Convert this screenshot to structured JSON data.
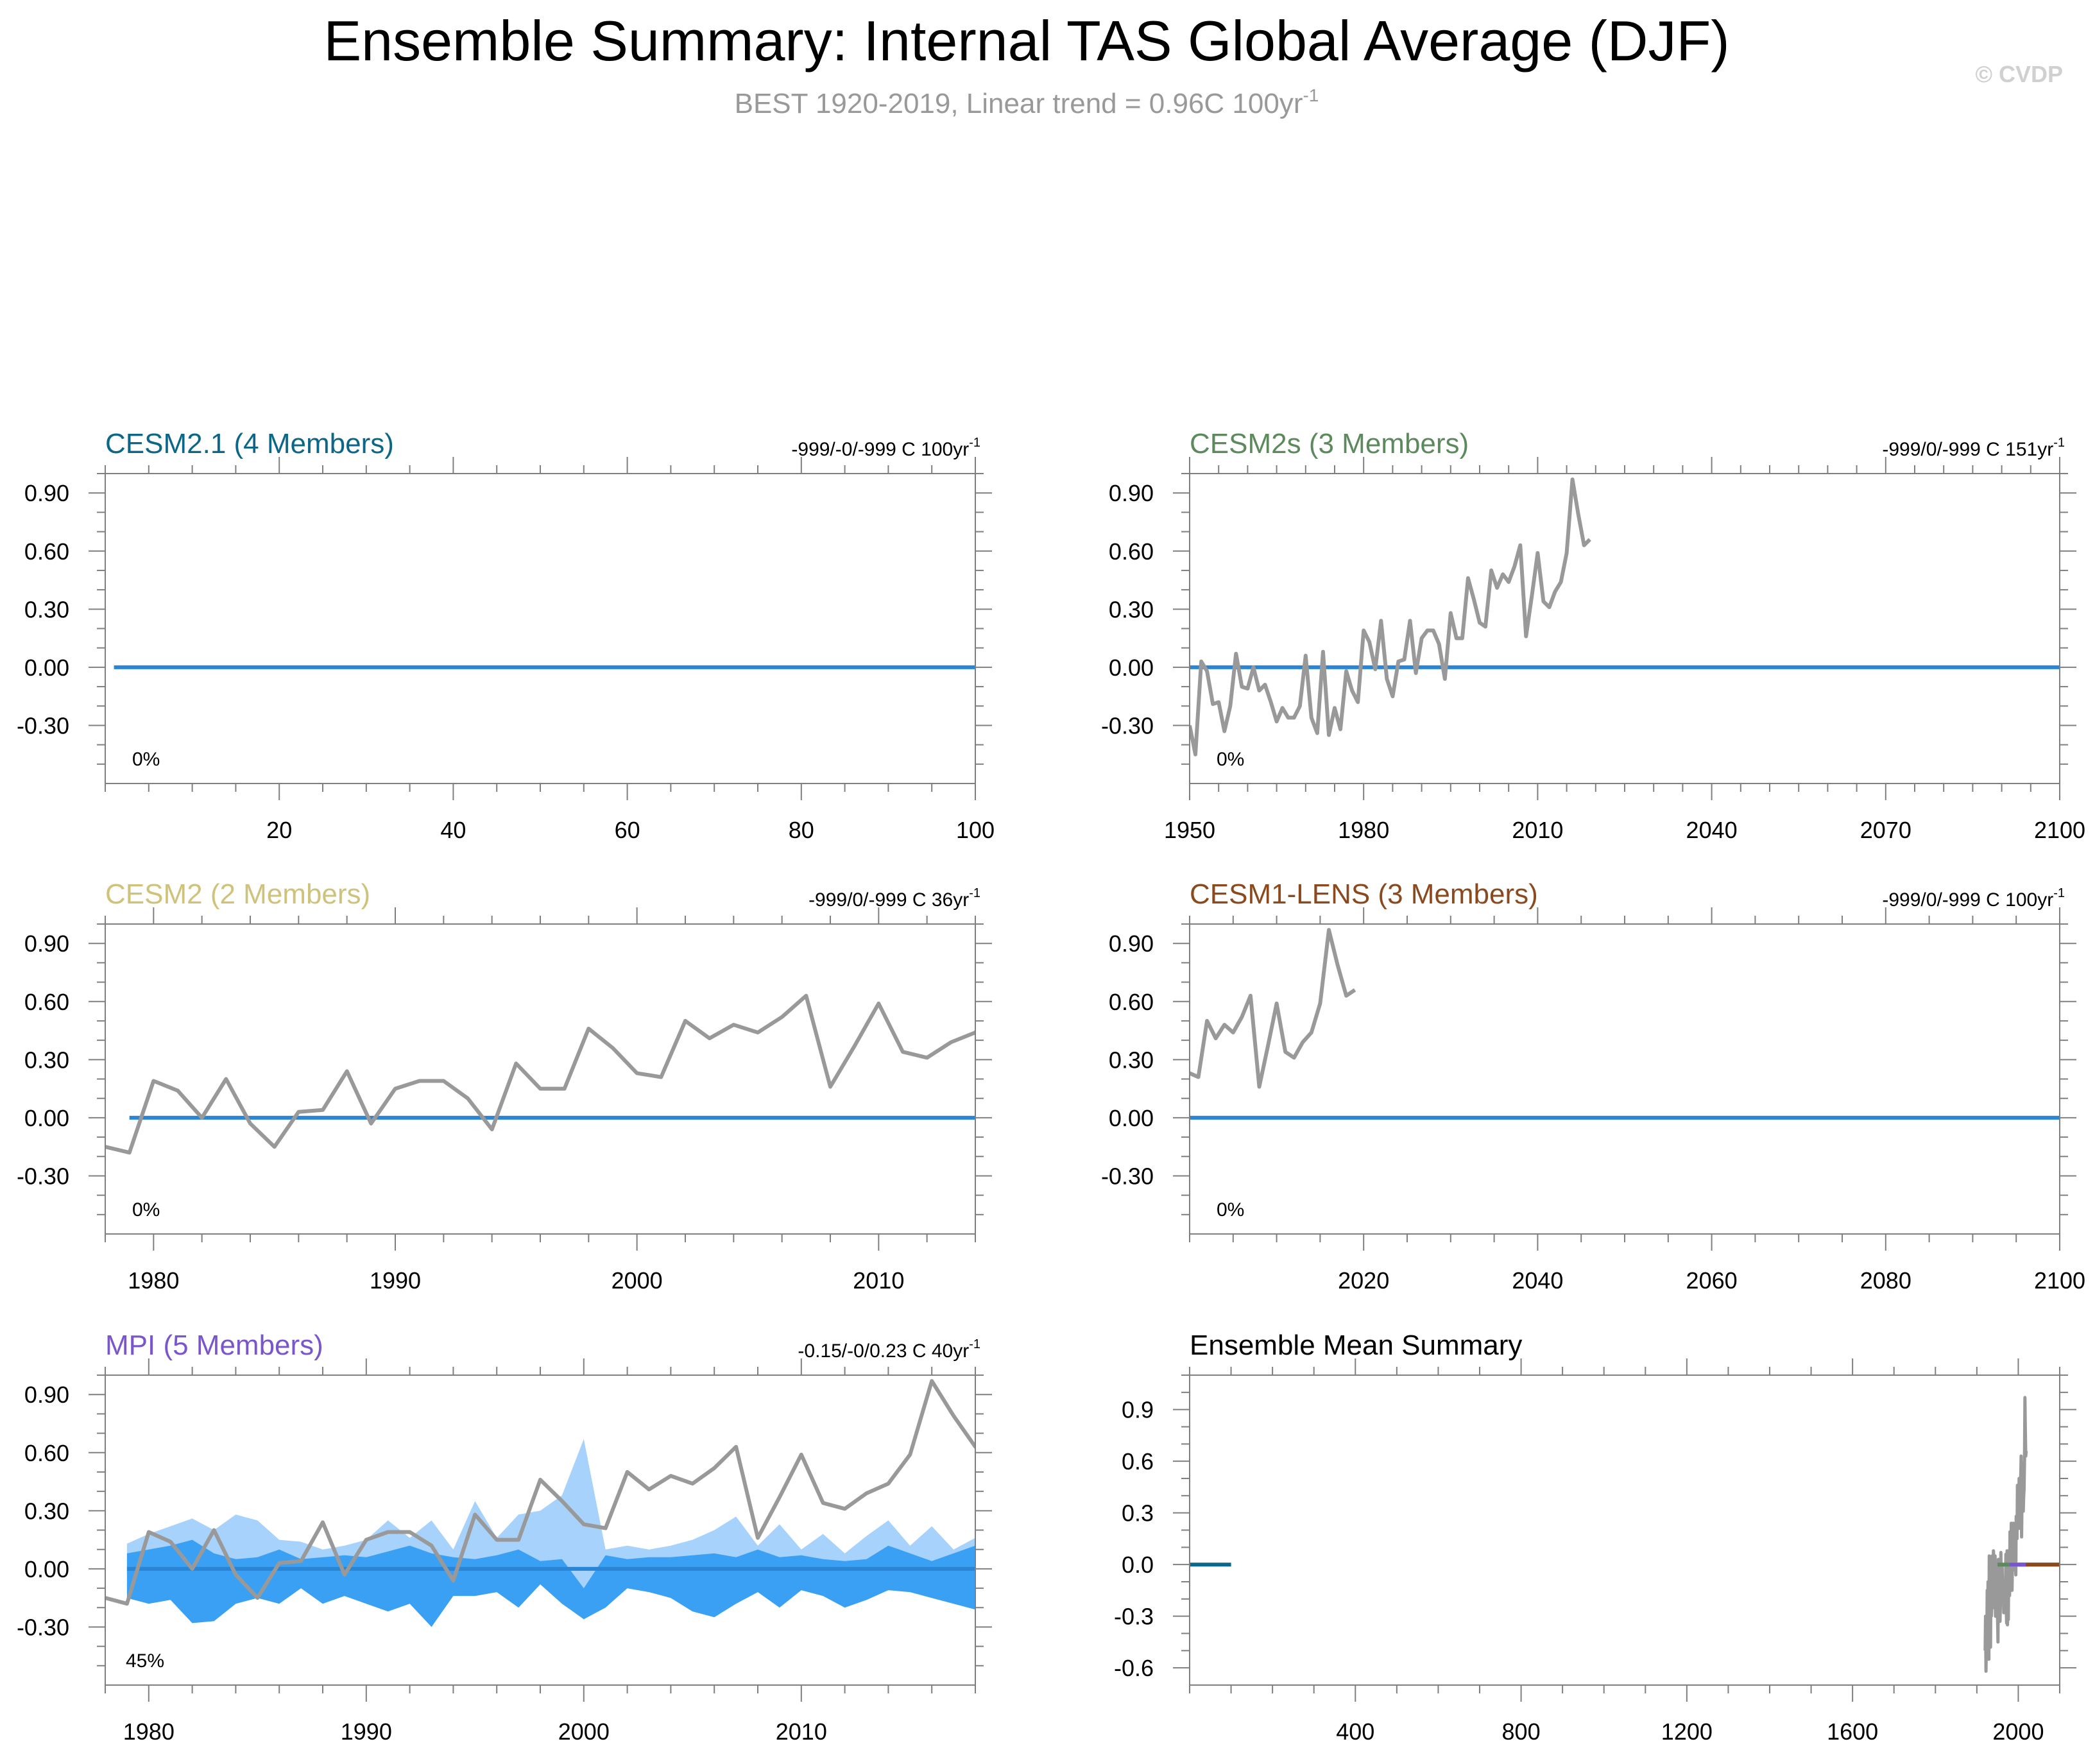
{
  "title": "Ensemble Summary: Internal TAS Global Average (DJF)",
  "subtitle_main": "BEST 1920-2019, Linear trend = 0.96C 100yr",
  "subtitle_sup": "-1",
  "watermark": "© CVDP",
  "colors": {
    "ens_line": "#2a86d4",
    "obs_line": "#999999",
    "band_outer": "#a7d2fb",
    "band_inner": "#3aa0f3",
    "axis": "#7f7f7f"
  },
  "chart_data": [
    {
      "type": "line",
      "title": "CESM2.1 (4 Members)",
      "title_color": "#0c6688",
      "trend_text": "-999/-0/-999 C 100yr",
      "trend_sup": "-1",
      "percent_label": "0%",
      "xlim": [
        0,
        100
      ],
      "ylim": [
        -0.6,
        1.0
      ],
      "xticks": [
        20,
        40,
        60,
        80,
        100
      ],
      "xminor": 5,
      "yticks": [
        0.9,
        0.6,
        0.3,
        0.0,
        -0.3
      ],
      "ytick_labels": [
        "0.90",
        "0.60",
        "0.30",
        "0.00",
        "-0.30"
      ],
      "yminor": 0.1,
      "ensemble_mean": {
        "x": [
          1,
          100
        ],
        "y": [
          0,
          0
        ]
      },
      "observations": null,
      "spread_outer": null,
      "spread_inner": null
    },
    {
      "type": "line",
      "title": "CESM2s (3 Members)",
      "title_color": "#5d8a5d",
      "trend_text": "-999/0/-999 C 151yr",
      "trend_sup": "-1",
      "percent_label": "0%",
      "xlim": [
        1950,
        2100
      ],
      "ylim": [
        -0.6,
        1.0
      ],
      "xticks": [
        1950,
        1980,
        2010,
        2040,
        2070,
        2100
      ],
      "xminor": 5,
      "yticks": [
        0.9,
        0.6,
        0.3,
        0.0,
        -0.3
      ],
      "ytick_labels": [
        "0.90",
        "0.60",
        "0.30",
        "0.00",
        "-0.30"
      ],
      "yminor": 0.1,
      "ensemble_mean": {
        "x": [
          1950,
          2100
        ],
        "y": [
          0,
          0
        ]
      },
      "observations": {
        "x": [
          1950,
          1951,
          1952,
          1953,
          1954,
          1955,
          1956,
          1957,
          1958,
          1959,
          1960,
          1961,
          1962,
          1963,
          1964,
          1965,
          1966,
          1967,
          1968,
          1969,
          1970,
          1971,
          1972,
          1973,
          1974,
          1975,
          1976,
          1977,
          1978,
          1979,
          1980,
          1981,
          1982,
          1983,
          1984,
          1985,
          1986,
          1987,
          1988,
          1989,
          1990,
          1991,
          1992,
          1993,
          1994,
          1995,
          1996,
          1997,
          1998,
          1999,
          2000,
          2001,
          2002,
          2003,
          2004,
          2005,
          2006,
          2007,
          2008,
          2009,
          2010,
          2011,
          2012,
          2013,
          2014,
          2015,
          2016,
          2017,
          2018,
          2019
        ],
        "y": [
          -0.3,
          -0.45,
          0.03,
          -0.02,
          -0.19,
          -0.18,
          -0.33,
          -0.2,
          0.07,
          -0.1,
          -0.11,
          0.0,
          -0.12,
          -0.09,
          -0.18,
          -0.28,
          -0.21,
          -0.26,
          -0.26,
          -0.2,
          0.06,
          -0.26,
          -0.34,
          0.08,
          -0.35,
          -0.21,
          -0.32,
          -0.02,
          -0.12,
          -0.18,
          0.19,
          0.13,
          -0.01,
          0.24,
          -0.06,
          -0.15,
          0.03,
          0.04,
          0.24,
          -0.03,
          0.15,
          0.19,
          0.19,
          0.12,
          -0.06,
          0.28,
          0.15,
          0.15,
          0.46,
          0.35,
          0.23,
          0.21,
          0.5,
          0.41,
          0.48,
          0.44,
          0.52,
          0.63,
          0.16,
          0.37,
          0.59,
          0.34,
          0.31,
          0.39,
          0.44,
          0.59,
          0.97,
          0.79,
          0.63,
          0.66
        ]
      },
      "spread_outer": null,
      "spread_inner": null
    },
    {
      "type": "line",
      "title": "CESM2 (2 Members)",
      "title_color": "#cfc27a",
      "trend_text": "-999/0/-999 C 36yr",
      "trend_sup": "-1",
      "percent_label": "0%",
      "xlim": [
        1978,
        2014
      ],
      "ylim": [
        -0.6,
        1.0
      ],
      "xticks": [
        1980,
        1990,
        2000,
        2010
      ],
      "xminor": 2,
      "yticks": [
        0.9,
        0.6,
        0.3,
        0.0,
        -0.3
      ],
      "ytick_labels": [
        "0.90",
        "0.60",
        "0.30",
        "0.00",
        "-0.30"
      ],
      "yminor": 0.1,
      "ensemble_mean": {
        "x": [
          1979,
          2014
        ],
        "y": [
          0,
          0
        ]
      },
      "observations": {
        "x": [
          1978,
          1979,
          1980,
          1981,
          1982,
          1983,
          1984,
          1985,
          1986,
          1987,
          1988,
          1989,
          1990,
          1991,
          1992,
          1993,
          1994,
          1995,
          1996,
          1997,
          1998,
          1999,
          2000,
          2001,
          2002,
          2003,
          2004,
          2005,
          2006,
          2007,
          2008,
          2009,
          2010,
          2011,
          2012,
          2013,
          2014,
          2015
        ],
        "y": [
          -0.15,
          -0.18,
          0.19,
          0.14,
          0.0,
          0.2,
          -0.03,
          -0.15,
          0.03,
          0.04,
          0.24,
          -0.03,
          0.15,
          0.19,
          0.19,
          0.1,
          -0.06,
          0.28,
          0.15,
          0.15,
          0.46,
          0.36,
          0.23,
          0.21,
          0.5,
          0.41,
          0.48,
          0.44,
          0.52,
          0.63,
          0.16,
          0.37,
          0.59,
          0.34,
          0.31,
          0.39,
          0.44,
          0.59
        ]
      },
      "spread_outer": null,
      "spread_inner": null
    },
    {
      "type": "line",
      "title": "CESM1-LENS (3 Members)",
      "title_color": "#8b4a1e",
      "trend_text": "-999/0/-999 C 100yr",
      "trend_sup": "-1",
      "percent_label": "0%",
      "xlim": [
        2000,
        2100
      ],
      "ylim": [
        -0.6,
        1.0
      ],
      "xticks": [
        2020,
        2040,
        2060,
        2080,
        2100
      ],
      "xminor": 5,
      "yticks": [
        0.9,
        0.6,
        0.3,
        0.0,
        -0.3
      ],
      "ytick_labels": [
        "0.90",
        "0.60",
        "0.30",
        "0.00",
        "-0.30"
      ],
      "yminor": 0.1,
      "ensemble_mean": {
        "x": [
          2000,
          2100
        ],
        "y": [
          0,
          0
        ]
      },
      "observations": {
        "x": [
          2000,
          2001,
          2002,
          2003,
          2004,
          2005,
          2006,
          2007,
          2008,
          2009,
          2010,
          2011,
          2012,
          2013,
          2014,
          2015,
          2016,
          2017,
          2018,
          2019
        ],
        "y": [
          0.23,
          0.21,
          0.5,
          0.41,
          0.48,
          0.44,
          0.52,
          0.63,
          0.16,
          0.37,
          0.59,
          0.34,
          0.31,
          0.39,
          0.44,
          0.59,
          0.97,
          0.79,
          0.63,
          0.66
        ]
      },
      "spread_outer": null,
      "spread_inner": null
    },
    {
      "type": "area",
      "title": "MPI (5 Members)",
      "title_color": "#7a56cc",
      "trend_text": "-0.15/-0/0.23 C 40yr",
      "trend_sup": "-1",
      "percent_label": "45%",
      "xlim": [
        1978,
        2018
      ],
      "ylim": [
        -0.6,
        1.0
      ],
      "xticks": [
        1980,
        1990,
        2000,
        2010
      ],
      "xminor": 2,
      "yticks": [
        0.9,
        0.6,
        0.3,
        0.0,
        -0.3
      ],
      "ytick_labels": [
        "0.90",
        "0.60",
        "0.30",
        "0.00",
        "-0.30"
      ],
      "yminor": 0.1,
      "ensemble_mean": {
        "x": [
          1979,
          2018
        ],
        "y": [
          0,
          0
        ]
      },
      "observations": {
        "x": [
          1978,
          1979,
          1980,
          1981,
          1982,
          1983,
          1984,
          1985,
          1986,
          1987,
          1988,
          1989,
          1990,
          1991,
          1992,
          1993,
          1994,
          1995,
          1996,
          1997,
          1998,
          1999,
          2000,
          2001,
          2002,
          2003,
          2004,
          2005,
          2006,
          2007,
          2008,
          2009,
          2010,
          2011,
          2012,
          2013,
          2014,
          2015,
          2016,
          2017,
          2018,
          2019
        ],
        "y": [
          -0.15,
          -0.18,
          0.19,
          0.14,
          0.0,
          0.2,
          -0.03,
          -0.15,
          0.03,
          0.04,
          0.24,
          -0.03,
          0.15,
          0.19,
          0.19,
          0.12,
          -0.06,
          0.28,
          0.15,
          0.15,
          0.46,
          0.35,
          0.23,
          0.21,
          0.5,
          0.41,
          0.48,
          0.44,
          0.52,
          0.63,
          0.16,
          0.37,
          0.59,
          0.34,
          0.31,
          0.39,
          0.44,
          0.59,
          0.97,
          0.79,
          0.63,
          0.66
        ]
      },
      "spread_outer": {
        "x": [
          1979,
          1980,
          1981,
          1982,
          1983,
          1984,
          1985,
          1986,
          1987,
          1988,
          1989,
          1990,
          1991,
          1992,
          1993,
          1994,
          1995,
          1996,
          1997,
          1998,
          1999,
          2000,
          2001,
          2002,
          2003,
          2004,
          2005,
          2006,
          2007,
          2008,
          2009,
          2010,
          2011,
          2012,
          2013,
          2014,
          2015,
          2016,
          2017,
          2018
        ],
        "upper": [
          0.13,
          0.18,
          0.22,
          0.26,
          0.2,
          0.28,
          0.25,
          0.15,
          0.14,
          0.1,
          0.12,
          0.15,
          0.25,
          0.16,
          0.25,
          0.1,
          0.35,
          0.16,
          0.28,
          0.3,
          0.38,
          0.67,
          0.1,
          0.12,
          0.1,
          0.12,
          0.15,
          0.2,
          0.27,
          0.12,
          0.23,
          0.1,
          0.18,
          0.08,
          0.17,
          0.25,
          0.12,
          0.22,
          0.1,
          0.16
        ],
        "lower": [
          -0.15,
          -0.18,
          -0.16,
          -0.28,
          -0.27,
          -0.18,
          -0.15,
          -0.18,
          -0.1,
          -0.18,
          -0.14,
          -0.18,
          -0.22,
          -0.18,
          -0.3,
          -0.14,
          -0.14,
          -0.12,
          -0.2,
          -0.08,
          -0.18,
          -0.26,
          -0.2,
          -0.1,
          -0.12,
          -0.15,
          -0.22,
          -0.25,
          -0.18,
          -0.12,
          -0.2,
          -0.11,
          -0.14,
          -0.2,
          -0.16,
          -0.11,
          -0.12,
          -0.15,
          -0.18,
          -0.21
        ]
      },
      "spread_inner": {
        "x": [
          1979,
          1980,
          1981,
          1982,
          1983,
          1984,
          1985,
          1986,
          1987,
          1988,
          1989,
          1990,
          1991,
          1992,
          1993,
          1994,
          1995,
          1996,
          1997,
          1998,
          1999,
          2000,
          2001,
          2002,
          2003,
          2004,
          2005,
          2006,
          2007,
          2008,
          2009,
          2010,
          2011,
          2012,
          2013,
          2014,
          2015,
          2016,
          2017,
          2018
        ],
        "upper": [
          0.08,
          0.1,
          0.12,
          0.15,
          0.08,
          0.05,
          0.06,
          0.1,
          0.05,
          0.06,
          0.07,
          0.06,
          0.09,
          0.12,
          0.08,
          0.06,
          0.05,
          0.07,
          0.1,
          0.04,
          0.05,
          -0.1,
          0.07,
          0.05,
          0.06,
          0.06,
          0.07,
          0.08,
          0.06,
          0.1,
          0.06,
          0.07,
          0.05,
          0.04,
          0.05,
          0.12,
          0.08,
          0.04,
          0.08,
          0.12
        ],
        "lower": [
          -0.15,
          -0.18,
          -0.16,
          -0.28,
          -0.27,
          -0.18,
          -0.15,
          -0.18,
          -0.1,
          -0.18,
          -0.14,
          -0.18,
          -0.22,
          -0.18,
          -0.3,
          -0.14,
          -0.14,
          -0.12,
          -0.2,
          -0.08,
          -0.18,
          -0.26,
          -0.2,
          -0.1,
          -0.12,
          -0.15,
          -0.22,
          -0.25,
          -0.18,
          -0.12,
          -0.2,
          -0.11,
          -0.14,
          -0.2,
          -0.16,
          -0.11,
          -0.12,
          -0.15,
          -0.18,
          -0.21
        ]
      }
    },
    {
      "type": "line",
      "title": "Ensemble Mean Summary",
      "title_color": "#000000",
      "xlim": [
        0,
        2100
      ],
      "ylim": [
        -0.7,
        1.1
      ],
      "xticks": [
        400,
        800,
        1200,
        1600,
        2000
      ],
      "xminor": 100,
      "yticks": [
        0.9,
        0.6,
        0.3,
        0.0,
        -0.3,
        -0.6
      ],
      "ytick_labels": [
        "0.9",
        "0.6",
        "0.3",
        "0.0",
        "-0.3",
        "-0.6"
      ],
      "yminor": 0.1,
      "summary_lines": [
        {
          "x": [
            1,
            100
          ],
          "y": [
            0,
            0
          ],
          "color": "#0c6688"
        },
        {
          "x": [
            1950,
            2100
          ],
          "y": [
            0,
            0
          ],
          "color": "#5d8a5d"
        },
        {
          "x": [
            1979,
            2014
          ],
          "y": [
            0,
            0
          ],
          "color": "#cfc27a"
        },
        {
          "x": [
            2000,
            2100
          ],
          "y": [
            0,
            0
          ],
          "color": "#8b4a1e"
        },
        {
          "x": [
            1979,
            2018
          ],
          "y": [
            0,
            0
          ],
          "color": "#7a56cc"
        }
      ],
      "summary_obs": {
        "x": [
          1920,
          1921,
          1922,
          1923,
          1924,
          1925,
          1926,
          1927,
          1928,
          1929,
          1930,
          1931,
          1932,
          1933,
          1934,
          1935,
          1936,
          1937,
          1938,
          1939,
          1940,
          1941,
          1942,
          1943,
          1944,
          1945,
          1946,
          1947,
          1948,
          1949,
          1950,
          1951,
          1952,
          1953,
          1954,
          1955,
          1956,
          1957,
          1958,
          1959,
          1960,
          1961,
          1962,
          1963,
          1964,
          1965,
          1966,
          1967,
          1968,
          1969,
          1970,
          1971,
          1972,
          1973,
          1974,
          1975,
          1976,
          1977,
          1978,
          1979,
          1980,
          1981,
          1982,
          1983,
          1984,
          1985,
          1986,
          1987,
          1988,
          1989,
          1990,
          1991,
          1992,
          1993,
          1994,
          1995,
          1996,
          1997,
          1998,
          1999,
          2000,
          2001,
          2002,
          2003,
          2004,
          2005,
          2006,
          2007,
          2008,
          2009,
          2010,
          2011,
          2012,
          2013,
          2014,
          2015,
          2016,
          2017,
          2018,
          2019
        ],
        "y": [
          -0.5,
          -0.3,
          -0.62,
          -0.4,
          -0.45,
          -0.15,
          -0.35,
          -0.1,
          -0.3,
          -0.55,
          0.05,
          -0.2,
          0.02,
          -0.48,
          -0.1,
          -0.3,
          -0.25,
          0.05,
          -0.05,
          -0.25,
          0.08,
          0.05,
          -0.1,
          -0.2,
          0.05,
          -0.3,
          -0.15,
          -0.05,
          -0.2,
          -0.25,
          -0.3,
          -0.45,
          0.03,
          -0.02,
          -0.19,
          -0.18,
          -0.33,
          -0.2,
          0.07,
          -0.1,
          -0.11,
          0.0,
          -0.12,
          -0.09,
          -0.18,
          -0.28,
          -0.21,
          -0.26,
          -0.26,
          -0.2,
          0.06,
          -0.26,
          -0.34,
          0.08,
          -0.35,
          -0.21,
          -0.32,
          -0.02,
          -0.12,
          -0.18,
          0.19,
          0.13,
          -0.01,
          0.24,
          -0.06,
          -0.15,
          0.03,
          0.04,
          0.24,
          -0.03,
          0.15,
          0.19,
          0.19,
          0.12,
          -0.06,
          0.28,
          0.15,
          0.15,
          0.46,
          0.35,
          0.23,
          0.21,
          0.5,
          0.41,
          0.48,
          0.44,
          0.52,
          0.63,
          0.16,
          0.37,
          0.59,
          0.34,
          0.31,
          0.39,
          0.44,
          0.59,
          0.97,
          0.79,
          0.63,
          0.66
        ]
      }
    }
  ]
}
